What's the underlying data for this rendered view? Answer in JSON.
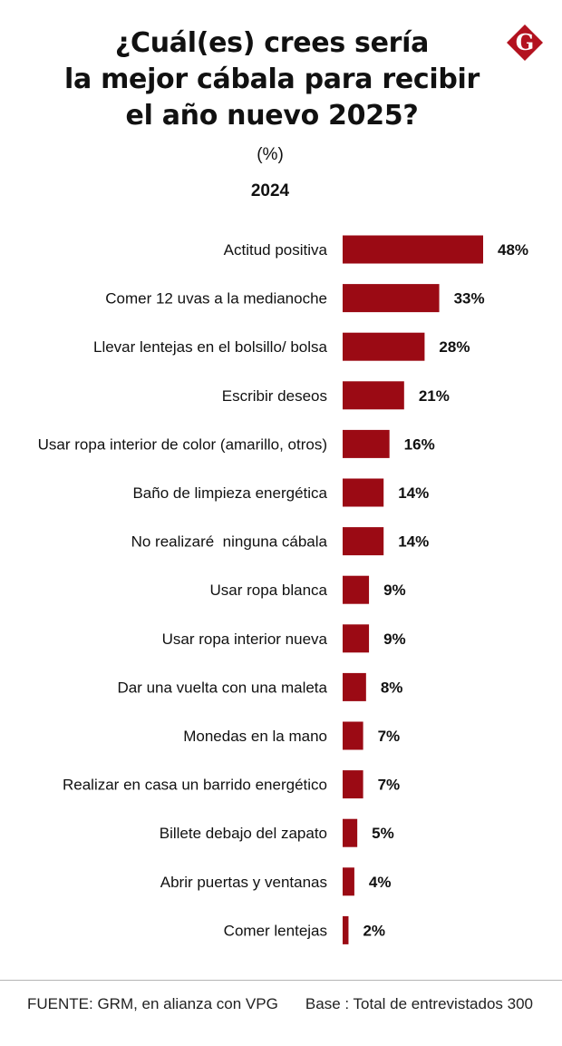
{
  "title_lines": [
    "¿Cuál(es) crees sería",
    "la mejor cábala para recibir",
    "el año nuevo 2025?"
  ],
  "unit": "(%)",
  "year": "2024",
  "logo_letter": "G",
  "footer": {
    "source": "FUENTE: GRM, en alianza con VPG",
    "base": "Base : Total de entrevistados 300"
  },
  "colors": {
    "bar": "#9b0a14",
    "logo": "#b3121f"
  },
  "chart_data": {
    "type": "bar",
    "orientation": "horizontal",
    "title": "¿Cuál(es) crees sería la mejor cábala para recibir el año nuevo 2025?",
    "subtitle": "2024",
    "unit": "%",
    "categories": [
      "Actitud positiva",
      "Comer 12 uvas a la medianoche",
      "Llevar lentejas en el bolsillo/ bolsa",
      "Escribir deseos",
      "Usar ropa interior de color (amarillo, otros)",
      "Baño de limpieza energética",
      "No realizaré  ninguna cábala",
      "Usar ropa blanca",
      "Usar ropa interior nueva",
      "Dar una vuelta con una maleta",
      "Monedas en la mano",
      "Realizar en casa un barrido energético",
      "Billete debajo del zapato",
      "Abrir puertas y ventanas",
      "Comer lentejas"
    ],
    "values": [
      48,
      33,
      28,
      21,
      16,
      14,
      14,
      9,
      9,
      8,
      7,
      7,
      5,
      4,
      2
    ],
    "data_labels": [
      "48%",
      "33%",
      "28%",
      "21%",
      "16%",
      "14%",
      "14%",
      "9%",
      "9%",
      "8%",
      "7%",
      "7%",
      "5%",
      "4%",
      "2%"
    ],
    "xlim": [
      0,
      48
    ],
    "grid": false,
    "legend": "none"
  }
}
